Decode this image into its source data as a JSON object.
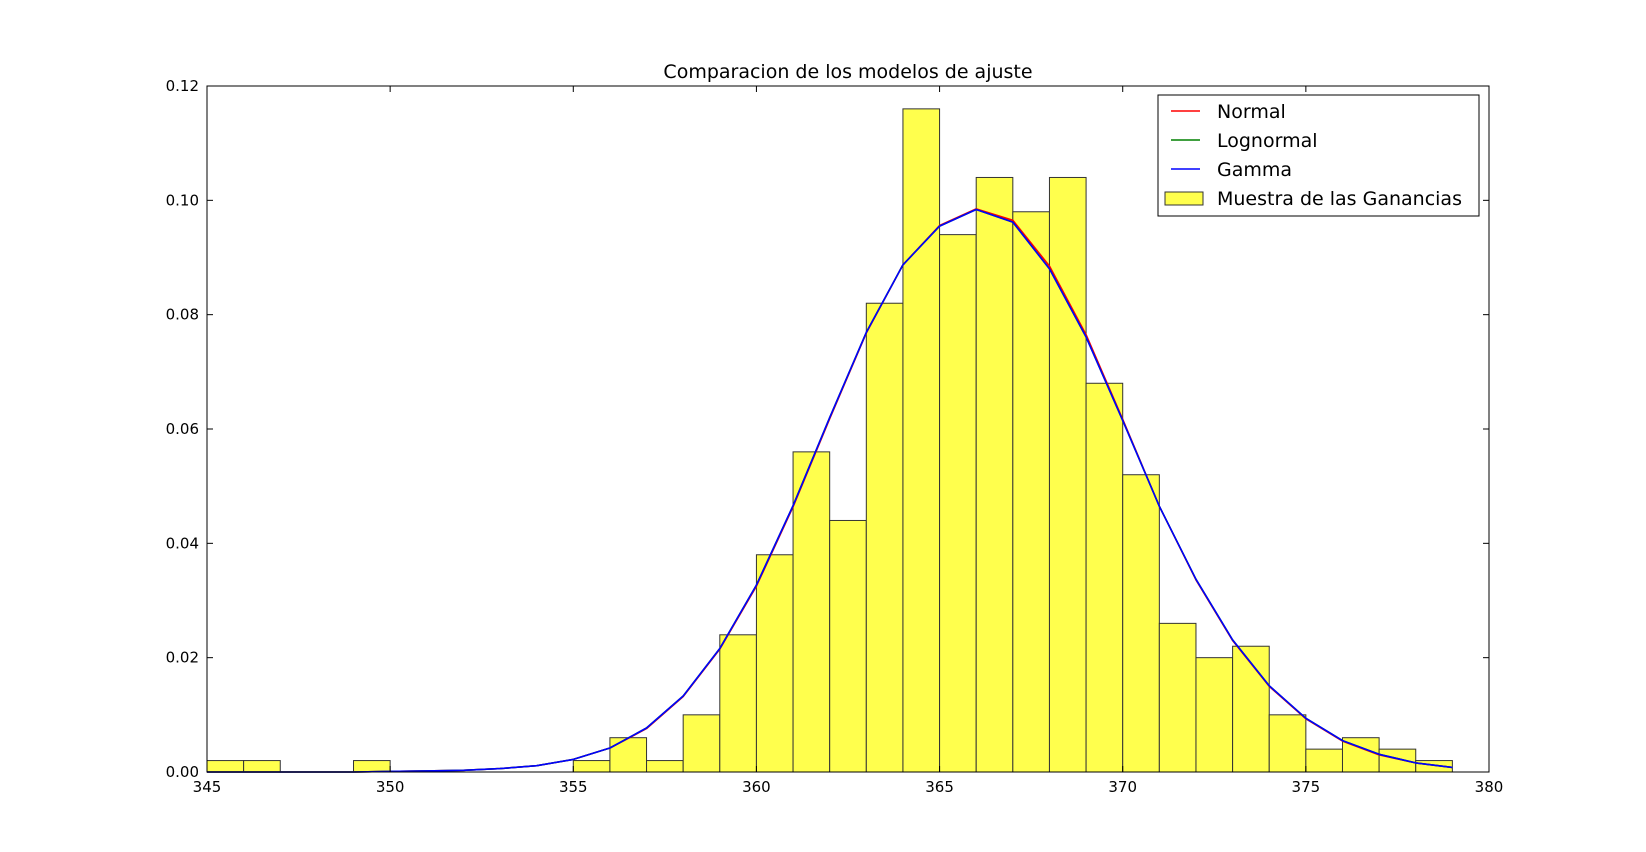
{
  "chart_data": {
    "type": "bar",
    "title": "Comparacion de los modelos de ajuste",
    "xlabel": "",
    "ylabel": "",
    "xlim": [
      345,
      380
    ],
    "ylim": [
      0,
      0.12
    ],
    "grid": false,
    "legend_placement": "top-right",
    "x_ticks": [
      "345",
      "350",
      "355",
      "360",
      "365",
      "370",
      "375",
      "380"
    ],
    "y_ticks": [
      "0.00",
      "0.02",
      "0.04",
      "0.06",
      "0.08",
      "0.10",
      "0.12"
    ],
    "histogram": {
      "name": "Muestra de las Ganancias",
      "color": "#ffff4d",
      "bin_width": 1,
      "bin_starts": [
        345,
        346,
        349,
        355,
        356,
        357,
        358,
        359,
        360,
        361,
        362,
        363,
        364,
        365,
        366,
        367,
        368,
        369,
        370,
        371,
        372,
        373,
        374,
        375,
        376,
        377,
        378
      ],
      "values": [
        0.002,
        0.002,
        0.002,
        0.002,
        0.006,
        0.002,
        0.01,
        0.024,
        0.038,
        0.056,
        0.044,
        0.082,
        0.116,
        0.094,
        0.104,
        0.098,
        0.104,
        0.068,
        0.052,
        0.026,
        0.02,
        0.022,
        0.01,
        0.004,
        0.006,
        0.004,
        0.002
      ]
    },
    "series": [
      {
        "name": "Normal",
        "color": "#ff0000",
        "x": [
          345,
          346,
          347,
          348,
          349,
          350,
          351,
          352,
          353,
          354,
          355,
          356,
          357,
          358,
          359,
          360,
          361,
          362,
          363,
          364,
          365,
          366,
          367,
          368,
          369,
          370,
          371,
          372,
          373,
          374,
          375,
          376,
          377,
          378,
          379
        ],
        "y": [
          0.0,
          0.0,
          0.0,
          0.0,
          0.0,
          0.0001,
          0.0002,
          0.0003,
          0.0006,
          0.0011,
          0.0022,
          0.0042,
          0.0076,
          0.0132,
          0.0215,
          0.0325,
          0.0464,
          0.0618,
          0.0768,
          0.0887,
          0.0956,
          0.0985,
          0.0965,
          0.0885,
          0.0765,
          0.0617,
          0.0465,
          0.0336,
          0.023,
          0.015,
          0.0093,
          0.0054,
          0.003,
          0.0016,
          0.0008
        ]
      },
      {
        "name": "Lognormal",
        "color": "#008000",
        "x": [
          345,
          346,
          347,
          348,
          349,
          350,
          351,
          352,
          353,
          354,
          355,
          356,
          357,
          358,
          359,
          360,
          361,
          362,
          363,
          364,
          365,
          366,
          367,
          368,
          369,
          370,
          371,
          372,
          373,
          374,
          375,
          376,
          377,
          378,
          379
        ],
        "y": [
          0.0,
          0.0,
          0.0,
          0.0,
          0.0,
          0.0001,
          0.0002,
          0.0003,
          0.0006,
          0.0011,
          0.0022,
          0.0042,
          0.0077,
          0.0133,
          0.0216,
          0.0327,
          0.0466,
          0.062,
          0.0769,
          0.0887,
          0.0955,
          0.0984,
          0.0962,
          0.088,
          0.0761,
          0.0615,
          0.0465,
          0.0337,
          0.0231,
          0.0151,
          0.0094,
          0.0055,
          0.0031,
          0.0016,
          0.0008
        ]
      },
      {
        "name": "Gamma",
        "color": "#0000ff",
        "x": [
          345,
          346,
          347,
          348,
          349,
          350,
          351,
          352,
          353,
          354,
          355,
          356,
          357,
          358,
          359,
          360,
          361,
          362,
          363,
          364,
          365,
          366,
          367,
          368,
          369,
          370,
          371,
          372,
          373,
          374,
          375,
          376,
          377,
          378,
          379
        ],
        "y": [
          0.0,
          0.0,
          0.0,
          0.0,
          0.0,
          0.0001,
          0.0002,
          0.0003,
          0.0006,
          0.0011,
          0.0022,
          0.0042,
          0.0077,
          0.0133,
          0.0216,
          0.0327,
          0.0466,
          0.062,
          0.0769,
          0.0887,
          0.0955,
          0.0984,
          0.0962,
          0.088,
          0.0761,
          0.0615,
          0.0465,
          0.0337,
          0.0231,
          0.0151,
          0.0094,
          0.0055,
          0.0031,
          0.0016,
          0.0008
        ]
      }
    ]
  }
}
